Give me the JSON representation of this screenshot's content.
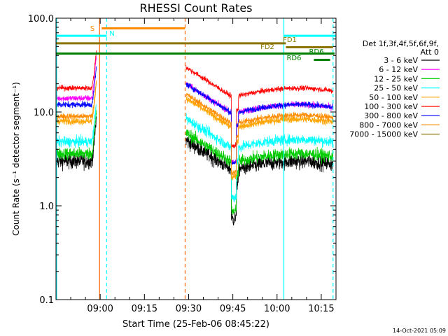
{
  "chart_data": {
    "type": "line",
    "title": "RHESSI Count Rates",
    "ylabel": "Count Rate (s⁻¹ detector segment⁻¹)",
    "xlabel": "Start Time (25-Feb-06 08:45:22)",
    "yscale": "log",
    "ylim": [
      0.1,
      100.0
    ],
    "xlim_minutes": [
      0,
      95
    ],
    "x_ticks": [
      {
        "m": 15,
        "label": "09:00"
      },
      {
        "m": 30,
        "label": "09:15"
      },
      {
        "m": 45,
        "label": "09:30"
      },
      {
        "m": 60,
        "label": "09:45"
      },
      {
        "m": 75,
        "label": "10:00"
      },
      {
        "m": 90,
        "label": "10:15"
      }
    ],
    "y_ticks": [
      {
        "v": 100.0,
        "label": "100.0"
      },
      {
        "v": 10.0,
        "label": "10.0"
      },
      {
        "v": 1.0,
        "label": "1.0"
      },
      {
        "v": 0.1,
        "label": "0.1"
      }
    ],
    "legend": {
      "header1": "Det 1f,3f,4f,5f,6f,9f,",
      "header2": "Att 0",
      "placement": "right"
    },
    "series": [
      {
        "name": "3 - 6 keV",
        "color": "#000000",
        "a": 3.0,
        "b": 5.0,
        "e": 3.5,
        "noise": 0.09
      },
      {
        "name": "6 - 12 keV",
        "color": "#ff00ff",
        "a": 14.0,
        "b": 20.0,
        "e": 16.5,
        "noise": 0.035
      },
      {
        "name": "12 - 25 keV",
        "color": "#00cc00",
        "a": 3.6,
        "b": 6.0,
        "e": 4.4,
        "noise": 0.07
      },
      {
        "name": "25 - 50 keV",
        "color": "#00ffff",
        "a": 4.8,
        "b": 8.5,
        "e": 6.2,
        "noise": 0.06
      },
      {
        "name": "50 - 100 keV",
        "color": "#ffa500",
        "a": 8.0,
        "b": 14.0,
        "e": 10.0,
        "noise": 0.04
      },
      {
        "name": "100 - 300 keV",
        "color": "#ff0000",
        "a": 18.0,
        "b": 30.0,
        "e": 22.0,
        "noise": 0.03
      },
      {
        "name": "300 - 800 keV",
        "color": "#0000ff",
        "a": 12.0,
        "b": 20.0,
        "e": 14.5,
        "noise": 0.035
      },
      {
        "name": "800 - 7000 keV",
        "color": "#ff8c00",
        "a": 9.0,
        "b": 15.5,
        "e": 11.0,
        "noise": 0.035
      },
      {
        "name": "7000 - 15000 keV",
        "color": "#8b7500",
        "a": 0,
        "b": 0,
        "e": 0,
        "noise": 0
      }
    ],
    "night_intervals_min": [
      [
        14.2,
        43.8
      ]
    ],
    "annotations": [
      {
        "label": "S",
        "color": "#ff8c00",
        "start": 15.5,
        "end": 43.8,
        "level": 78,
        "label_side": "left"
      },
      {
        "label": "N",
        "color": "#00ffff",
        "start": 0,
        "end": 17.2,
        "level": 65,
        "label_side": "right_of_end"
      },
      {
        "label": "FD1",
        "color": "#8b7500",
        "start": 0,
        "end": 78.0,
        "level": 54,
        "label_side": "right_of_end"
      },
      {
        "label": "FD2",
        "color": "#8b7500",
        "start": 78.0,
        "end": 94.0,
        "level": 49,
        "label_side": "left"
      },
      {
        "label": "RD6",
        "color": "#008000",
        "start": 0,
        "end": 94.0,
        "level": 42,
        "label_side": "none"
      },
      {
        "label": "RD6",
        "color": "#008000",
        "start": 87.5,
        "end": 93.0,
        "level": 36,
        "label_side": "left"
      },
      {
        "label": "RD6",
        "color": "#008000",
        "start": 93.0,
        "end": 94.5,
        "level": 42,
        "label_side": "right_top"
      },
      {
        "label": "N",
        "color": "#00ffff",
        "start": 77.3,
        "end": 95.0,
        "level": 65,
        "label_side": "none"
      }
    ],
    "vlines": [
      {
        "m": 0.2,
        "color": "#00ffff",
        "style": "solid"
      },
      {
        "m": 14.8,
        "color": "#ff6600",
        "style": "solid"
      },
      {
        "m": 17.2,
        "color": "#00ffff",
        "style": "dashed"
      },
      {
        "m": 43.8,
        "color": "#ff6600",
        "style": "dashed"
      },
      {
        "m": 77.3,
        "color": "#00ffff",
        "style": "solid"
      },
      {
        "m": 94.0,
        "color": "#00ffff",
        "style": "dashed"
      }
    ]
  },
  "footer_date": "14-Oct-2021 05:09"
}
